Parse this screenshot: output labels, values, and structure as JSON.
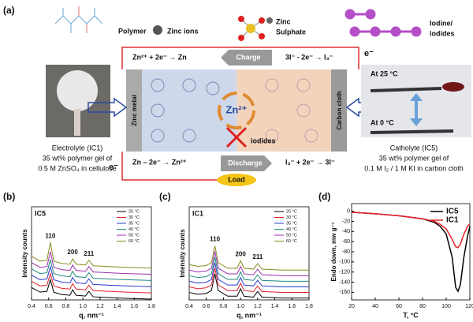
{
  "diagram": {
    "panel": "(a)",
    "polymer": "Polymer",
    "zinc_ions": "Zinc ions",
    "zinc_sulphate": [
      "Zinc",
      "Sulphate"
    ],
    "iodine": [
      "Iodine/",
      "iodides"
    ],
    "charge_left": "Zn²⁺ + 2e⁻ → Zn",
    "charge": "Charge",
    "charge_right": "3I⁻ - 2e⁻ → I₃⁻",
    "electron_top": "e⁻",
    "electron_bottom": "e⁻",
    "zinc_metal": "Zinc metal",
    "carbon_cloth": "Carbon cloth",
    "zn_center": "Zn²⁺",
    "iodides": "iodides",
    "discharge_left": "Zn – 2e⁻ → Zn²⁺",
    "discharge": "Discharge",
    "discharge_right": "I₃⁻ + 2e⁻ → 3I⁻",
    "load": "Load",
    "electrolyte": [
      "Electrolyte (IC1)",
      "35 wt% polymer gel of",
      "0.5 M ZnSO₄ in cellulose"
    ],
    "at_25": "At 25 °C",
    "at_0": "At 0 °C",
    "catholyte": [
      "Catholyte (IC5)",
      "35 wt% polymer gel of",
      "0.1 M I₂ / 1 M KI in carbon cloth"
    ]
  },
  "chart_data": [
    {
      "type": "line",
      "panel": "(b)",
      "title": "IC5",
      "xlabel": "q, nm⁻¹",
      "ylabel": "Intensity counts",
      "legend": "upper right",
      "x": [
        0.4,
        0.5,
        0.58,
        0.62,
        0.66,
        0.75,
        0.85,
        0.88,
        0.92,
        1.03,
        1.07,
        1.12,
        1.3,
        1.5,
        1.8
      ],
      "xlim": [
        0.4,
        1.8
      ],
      "xticks": [
        0.4,
        0.6,
        0.8,
        {
          "value": 1,
          "label": "1.0"
        },
        1.2,
        1.4,
        1.6,
        1.8
      ],
      "ylim": [
        0,
        12
      ],
      "annotations": [
        {
          "text": "110",
          "x": 0.62
        },
        {
          "text": "200",
          "x": 0.88
        },
        {
          "text": "211",
          "x": 1.07
        }
      ],
      "series": [
        {
          "name": "25 °C",
          "color": "#000000",
          "values": [
            1.6,
            1.0,
            1.1,
            2.6,
            1.0,
            0.7,
            0.6,
            1.3,
            0.6,
            0.5,
            1.1,
            0.4,
            0.3,
            0.2,
            0.1
          ]
        },
        {
          "name": "30 °C",
          "color": "#e8202a",
          "values": [
            2.4,
            1.8,
            1.9,
            3.4,
            1.8,
            1.5,
            1.4,
            2.1,
            1.4,
            1.3,
            1.9,
            1.2,
            1.1,
            1.0,
            0.9
          ]
        },
        {
          "name": "35 °C",
          "color": "#2b3cc8",
          "values": [
            3.2,
            2.6,
            2.7,
            4.3,
            2.6,
            2.3,
            2.2,
            2.9,
            2.2,
            2.1,
            2.7,
            2.0,
            1.9,
            1.8,
            1.7
          ]
        },
        {
          "name": "40 °C",
          "color": "#1f8a80",
          "values": [
            4.0,
            3.4,
            3.5,
            5.2,
            3.4,
            3.1,
            3.0,
            3.7,
            3.0,
            2.9,
            3.5,
            2.8,
            2.7,
            2.6,
            2.5
          ]
        },
        {
          "name": "50 °C",
          "color": "#9b2fae",
          "values": [
            4.8,
            4.2,
            4.3,
            6.2,
            4.2,
            3.9,
            3.8,
            4.5,
            3.8,
            3.7,
            4.3,
            3.6,
            3.5,
            3.4,
            3.3
          ]
        },
        {
          "name": "60 °C",
          "color": "#8a8a1e",
          "values": [
            5.6,
            5.0,
            5.1,
            7.4,
            5.0,
            4.7,
            4.6,
            5.3,
            4.6,
            4.5,
            5.1,
            4.4,
            4.3,
            4.2,
            4.1
          ]
        }
      ]
    },
    {
      "type": "line",
      "panel": "(c)",
      "title": "IC1",
      "xlabel": "q, nm⁻¹",
      "ylabel": "Intensity counts",
      "legend": "upper right",
      "x": [
        0.4,
        0.5,
        0.6,
        0.66,
        0.7,
        0.74,
        0.85,
        0.96,
        1.0,
        1.04,
        1.15,
        1.2,
        1.25,
        1.5,
        1.8
      ],
      "xlim": [
        0.4,
        1.8
      ],
      "xticks": [
        0.4,
        0.6,
        0.8,
        {
          "value": 1,
          "label": "1.0"
        },
        1.2,
        1.4,
        1.6,
        1.8
      ],
      "ylim": [
        0,
        10
      ],
      "annotations": [
        {
          "text": "110",
          "x": 0.7
        },
        {
          "text": "200",
          "x": 1.0
        },
        {
          "text": "211",
          "x": 1.2
        }
      ],
      "series": [
        {
          "name": "25 °C",
          "color": "#000000",
          "values": [
            0.8,
            0.6,
            0.7,
            1.0,
            2.8,
            1.0,
            0.4,
            0.4,
            1.2,
            0.4,
            0.3,
            0.9,
            0.3,
            0.2,
            0.2
          ]
        },
        {
          "name": "30 °C",
          "color": "#e8202a",
          "values": [
            1.4,
            1.2,
            1.3,
            1.6,
            3.4,
            1.6,
            1.0,
            1.0,
            1.8,
            1.0,
            0.9,
            1.5,
            0.9,
            0.8,
            0.8
          ]
        },
        {
          "name": "35 °C",
          "color": "#2b3cc8",
          "values": [
            2.0,
            1.8,
            1.9,
            2.2,
            4.0,
            2.2,
            1.6,
            1.6,
            2.4,
            1.6,
            1.5,
            2.1,
            1.5,
            1.4,
            1.4
          ]
        },
        {
          "name": "40 °C",
          "color": "#1f8a80",
          "values": [
            2.6,
            2.4,
            2.5,
            2.8,
            4.6,
            2.8,
            2.2,
            2.2,
            3.0,
            2.2,
            2.1,
            2.7,
            2.1,
            2.0,
            2.0
          ]
        },
        {
          "name": "50 °C",
          "color": "#9b2fae",
          "values": [
            3.2,
            3.0,
            3.1,
            3.4,
            5.2,
            3.4,
            2.8,
            2.8,
            3.6,
            2.8,
            2.7,
            3.3,
            2.7,
            2.6,
            2.6
          ]
        },
        {
          "name": "60 °C",
          "color": "#8a8a1e",
          "values": [
            3.8,
            3.6,
            3.7,
            4.0,
            5.8,
            4.0,
            3.4,
            3.4,
            4.2,
            3.4,
            3.3,
            3.9,
            3.3,
            3.2,
            3.2
          ]
        }
      ]
    },
    {
      "type": "line",
      "panel": "(d)",
      "xlabel": "T, °C",
      "ylabel": "Endo down, mw g⁻¹",
      "legend": "upper right",
      "x": [
        20,
        40,
        60,
        80,
        90,
        95,
        100,
        105,
        108,
        110,
        112,
        115,
        118,
        120
      ],
      "xlim": [
        20,
        120
      ],
      "xticks": [
        20,
        40,
        60,
        80,
        100,
        120
      ],
      "ylim": [
        -175,
        15
      ],
      "yticks": [
        0,
        -20,
        -40,
        -60,
        -80,
        -100,
        -120,
        -140,
        -160
      ],
      "series": [
        {
          "name": "IC5",
          "color": "#000000",
          "values": [
            -2,
            -5,
            -9,
            -15,
            -22,
            -30,
            -45,
            -90,
            -150,
            -158,
            -145,
            -90,
            -50,
            -30
          ]
        },
        {
          "name": "IC1",
          "color": "#e8202a",
          "values": [
            -2,
            -5,
            -9,
            -15,
            -20,
            -26,
            -35,
            -55,
            -70,
            -72,
            -65,
            -45,
            -30,
            -25
          ]
        }
      ]
    }
  ]
}
